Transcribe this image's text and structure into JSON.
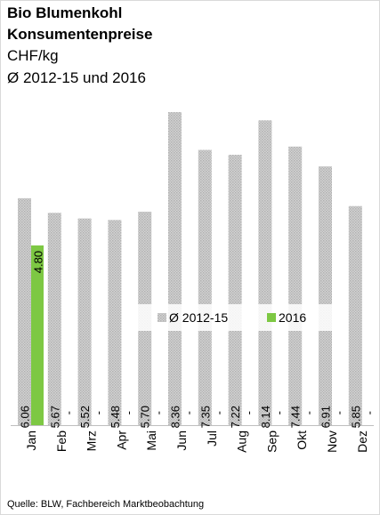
{
  "chart_data": {
    "type": "bar",
    "title": "Bio Blumenkohl",
    "subtitle": "Konsumentenpreise",
    "unit": "CHF/kg",
    "period": "Ø 2012-15 und 2016",
    "source": "Quelle: BLW, Fachbereich Marktbeobachtung",
    "categories": [
      "Jan",
      "Feb",
      "Mrz",
      "Apr",
      "Mai",
      "Jun",
      "Jul",
      "Aug",
      "Sep",
      "Okt",
      "Nov",
      "Dez"
    ],
    "series": [
      {
        "name": "Ø 2012-15",
        "color": "#c4c4c4",
        "values": [
          6.06,
          5.67,
          5.52,
          5.48,
          5.7,
          8.36,
          7.35,
          7.22,
          8.14,
          7.44,
          6.91,
          5.85
        ],
        "value_labels": [
          "6.06",
          "5.67",
          "5.52",
          "5.48",
          "5.70",
          "8.36",
          "7.35",
          "7.22",
          "8.14",
          "7.44",
          "6.91",
          "5.85"
        ]
      },
      {
        "name": "2016",
        "color": "#7dc843",
        "values": [
          4.8,
          null,
          null,
          null,
          null,
          null,
          null,
          null,
          null,
          null,
          null,
          null
        ],
        "value_labels": [
          "4.80",
          "-",
          "-",
          "-",
          "-",
          "-",
          "-",
          "-",
          "-",
          "-",
          "-",
          "-"
        ]
      }
    ],
    "legend": "center"
  }
}
